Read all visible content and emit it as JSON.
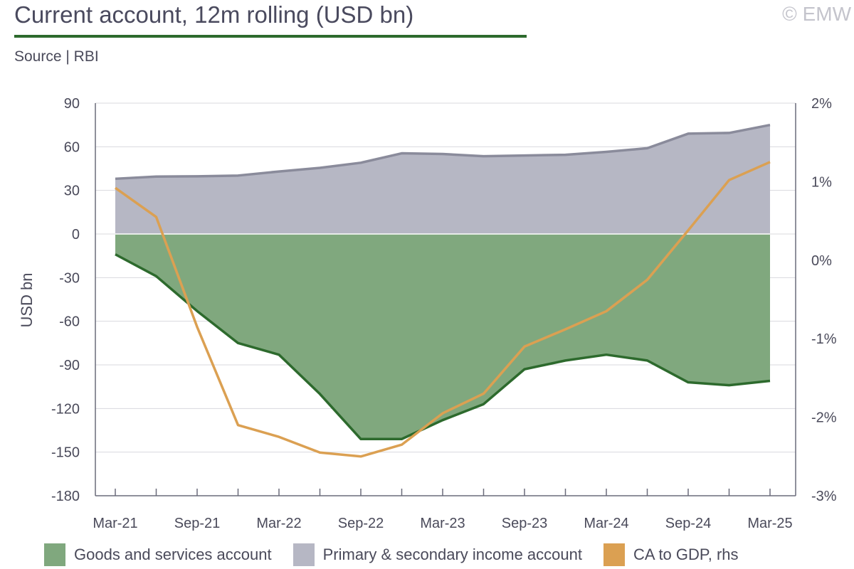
{
  "header": {
    "title": "Current account, 12m rolling (USD bn)",
    "source": "Source | RBI",
    "copyright": "© EMW"
  },
  "colors": {
    "goods": "#80a87e",
    "goods_line": "#2d6a2d",
    "income": "#b6b7c4",
    "income_line": "#8a8b9b",
    "ca_gdp": "#dba052",
    "axis": "#6a6b7a"
  },
  "chart_data": {
    "type": "area",
    "ylabel": "USD bn",
    "ylim": [
      -180,
      90
    ],
    "y2lim": [
      -3,
      2
    ],
    "yticks": [
      90,
      60,
      30,
      0,
      -30,
      -60,
      -90,
      -120,
      -150,
      -180
    ],
    "y2ticks": [
      "2%",
      "1%",
      "0%",
      "-1%",
      "-2%",
      "-3%"
    ],
    "y2tick_values": [
      2,
      1,
      0,
      -1,
      -2,
      -3
    ],
    "x_labels": [
      "Mar-21",
      "Sep-21",
      "Mar-22",
      "Sep-22",
      "Mar-23",
      "Sep-23",
      "Mar-24",
      "Sep-24",
      "Mar-25"
    ],
    "x": [
      "Mar-21",
      "Jun-21",
      "Sep-21",
      "Dec-21",
      "Mar-22",
      "Jun-22",
      "Sep-22",
      "Dec-22",
      "Mar-23",
      "Jun-23",
      "Sep-23",
      "Dec-23",
      "Mar-24",
      "Jun-24",
      "Sep-24",
      "Dec-24",
      "Mar-25"
    ],
    "grid": true,
    "legend": "bottom",
    "series": [
      {
        "name": "Goods and services account",
        "type": "area",
        "values": [
          -14,
          -29,
          -53,
          -75,
          -83,
          -110,
          -141,
          -141,
          -128,
          -117,
          -93,
          -87,
          -83,
          -87,
          -102,
          -104,
          -101
        ]
      },
      {
        "name": "Primary & secondary income account",
        "type": "area",
        "values": [
          38,
          39.5,
          39.7,
          40.2,
          43,
          45.5,
          49,
          55.5,
          55,
          53.5,
          54,
          54.5,
          56.5,
          59,
          69,
          69.5,
          75
        ]
      },
      {
        "name": "CA to GDP, rhs",
        "type": "line",
        "axis": "right",
        "values": [
          0.92,
          0.55,
          -0.85,
          -2.1,
          -2.25,
          -2.45,
          -2.5,
          -2.35,
          -1.95,
          -1.7,
          -1.1,
          -0.88,
          -0.65,
          -0.25,
          0.38,
          1.02,
          1.25
        ]
      }
    ]
  }
}
